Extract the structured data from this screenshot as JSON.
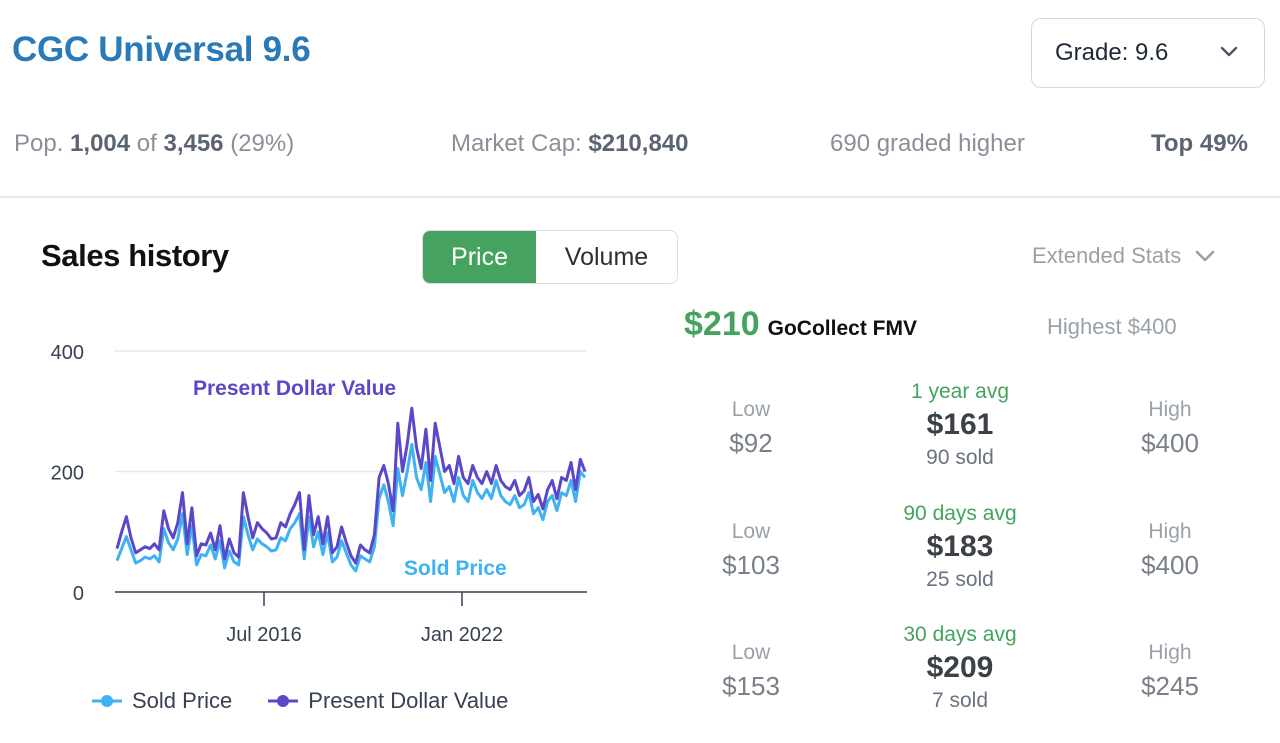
{
  "header": {
    "title": "CGC Universal 9.6",
    "grade_select_value": "Grade: 9.6"
  },
  "stats": {
    "pop_prefix": "Pop.",
    "pop_count": "1,004",
    "pop_of": "of",
    "pop_total": "3,456",
    "pop_pct": "(29%)",
    "market_cap_label": "Market Cap:",
    "market_cap_value": "$210,840",
    "graded_higher": "690 graded higher",
    "top_pct": "Top 49%"
  },
  "sales": {
    "title": "Sales history",
    "toggle": {
      "price": "Price",
      "volume": "Volume"
    },
    "extended_stats": "Extended Stats"
  },
  "fmv": {
    "price": "$210",
    "label": "GoCollect FMV",
    "highest": "Highest $400"
  },
  "periods": [
    {
      "low_label": "Low",
      "low": "$92",
      "period": "1 year avg",
      "avg": "$161",
      "sold": "90 sold",
      "high_label": "High",
      "high": "$400"
    },
    {
      "low_label": "Low",
      "low": "$103",
      "period": "90 days avg",
      "avg": "$183",
      "sold": "25 sold",
      "high_label": "High",
      "high": "$400"
    },
    {
      "low_label": "Low",
      "low": "$153",
      "period": "30 days avg",
      "avg": "$209",
      "sold": "7 sold",
      "high_label": "High",
      "high": "$245"
    }
  ],
  "colors": {
    "title_blue": "#2a7ab8",
    "accent_green": "#45a35f",
    "sold_price": "#3fb1f5",
    "present_dollar": "#5b48c9"
  },
  "chart_data": {
    "type": "line",
    "x_tick_labels": [
      "Jul 2016",
      "Jan 2022"
    ],
    "y_ticks": [
      0,
      200,
      400
    ],
    "ylim": [
      0,
      400
    ],
    "grid": true,
    "legend_position": "bottom",
    "annotations": [
      "Present Dollar Value",
      "Sold Price"
    ],
    "series": [
      {
        "name": "Sold Price",
        "values": [
          52,
          72,
          92,
          70,
          48,
          52,
          58,
          55,
          60,
          50,
          105,
          82,
          70,
          88,
          130,
          62,
          110,
          45,
          62,
          60,
          78,
          55,
          85,
          40,
          68,
          50,
          45,
          125,
          95,
          70,
          88,
          80,
          75,
          68,
          70,
          90,
          85,
          105,
          115,
          130,
          55,
          125,
          75,
          100,
          62,
          98,
          50,
          58,
          85,
          65,
          45,
          35,
          60,
          55,
          50,
          75,
          155,
          178,
          150,
          110,
          205,
          160,
          200,
          245,
          190,
          170,
          215,
          150,
          225,
          195,
          165,
          175,
          150,
          190,
          160,
          150,
          185,
          165,
          155,
          170,
          155,
          185,
          160,
          150,
          145,
          160,
          140,
          145,
          165,
          130,
          140,
          120,
          150,
          160,
          135,
          165,
          160,
          185,
          150,
          200,
          190
        ]
      },
      {
        "name": "Present Dollar Value",
        "values": [
          72,
          100,
          125,
          90,
          65,
          70,
          75,
          72,
          80,
          70,
          135,
          105,
          90,
          115,
          165,
          80,
          140,
          60,
          80,
          78,
          98,
          70,
          110,
          55,
          88,
          65,
          58,
          165,
          125,
          90,
          115,
          105,
          98,
          88,
          90,
          115,
          108,
          130,
          145,
          165,
          70,
          160,
          95,
          125,
          80,
          125,
          65,
          75,
          108,
          82,
          60,
          48,
          78,
          70,
          65,
          95,
          190,
          210,
          180,
          135,
          280,
          200,
          245,
          305,
          240,
          205,
          270,
          185,
          280,
          240,
          200,
          210,
          180,
          225,
          190,
          180,
          210,
          190,
          180,
          200,
          180,
          210,
          185,
          175,
          170,
          185,
          160,
          168,
          190,
          150,
          162,
          138,
          170,
          185,
          155,
          190,
          185,
          215,
          170,
          220,
          200
        ]
      }
    ]
  }
}
